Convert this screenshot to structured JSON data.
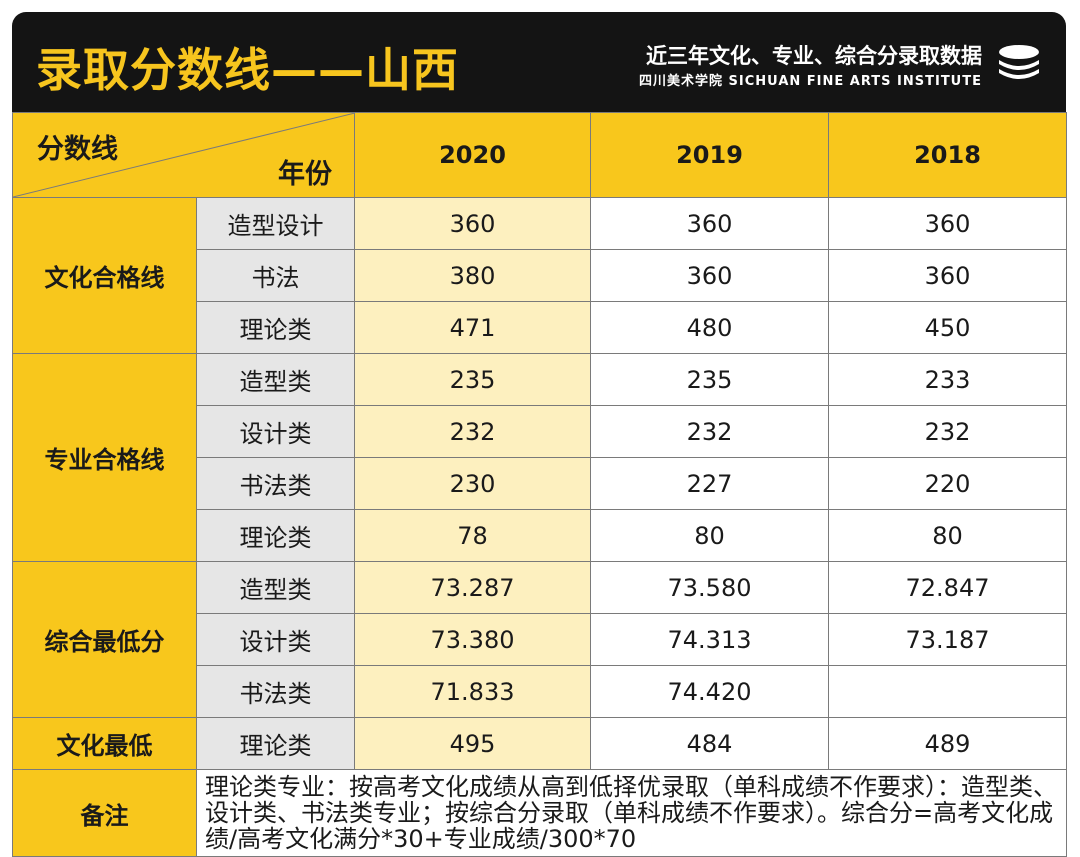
{
  "header": {
    "title": "录取分数线——山西",
    "subtitle": "近三年文化、专业、综合分录取数据",
    "subtitle_en": "四川美术学院 SICHUAN FINE ARTS INSTITUTE",
    "logo_icon": "stacked-discs-icon"
  },
  "table": {
    "corner_top": "分数线",
    "corner_bottom": "年份",
    "years": [
      "2020",
      "2019",
      "2018"
    ],
    "groups": [
      {
        "name": "文化合格线",
        "rows": [
          {
            "sub": "造型设计",
            "values": [
              "360",
              "360",
              "360"
            ]
          },
          {
            "sub": "书法",
            "values": [
              "380",
              "360",
              "360"
            ]
          },
          {
            "sub": "理论类",
            "values": [
              "471",
              "480",
              "450"
            ]
          }
        ]
      },
      {
        "name": "专业合格线",
        "rows": [
          {
            "sub": "造型类",
            "values": [
              "235",
              "235",
              "233"
            ]
          },
          {
            "sub": "设计类",
            "values": [
              "232",
              "232",
              "232"
            ]
          },
          {
            "sub": "书法类",
            "values": [
              "230",
              "227",
              "220"
            ]
          },
          {
            "sub": "理论类",
            "values": [
              "78",
              "80",
              "80"
            ]
          }
        ]
      },
      {
        "name": "综合最低分",
        "rows": [
          {
            "sub": "造型类",
            "values": [
              "73.287",
              "73.580",
              "72.847"
            ]
          },
          {
            "sub": "设计类",
            "values": [
              "73.380",
              "74.313",
              "73.187"
            ]
          },
          {
            "sub": "书法类",
            "values": [
              "71.833",
              "74.420",
              ""
            ]
          }
        ]
      },
      {
        "name": "文化最低",
        "rows": [
          {
            "sub": "理论类",
            "values": [
              "495",
              "484",
              "489"
            ]
          }
        ]
      }
    ],
    "note_label": "备注",
    "note_text": "理论类专业：按高考文化成绩从高到低择优录取（单科成绩不作要求）：造型类、设计类、书法类专业；按综合分录取（单科成绩不作要求）。综合分=高考文化成绩/高考文化满分*30+专业成绩/300*70"
  },
  "colors": {
    "accent": "#f8c71c",
    "header_bg": "#141414",
    "highlight_col": "#fdf0bf",
    "sub_bg": "#e6e6e6"
  }
}
